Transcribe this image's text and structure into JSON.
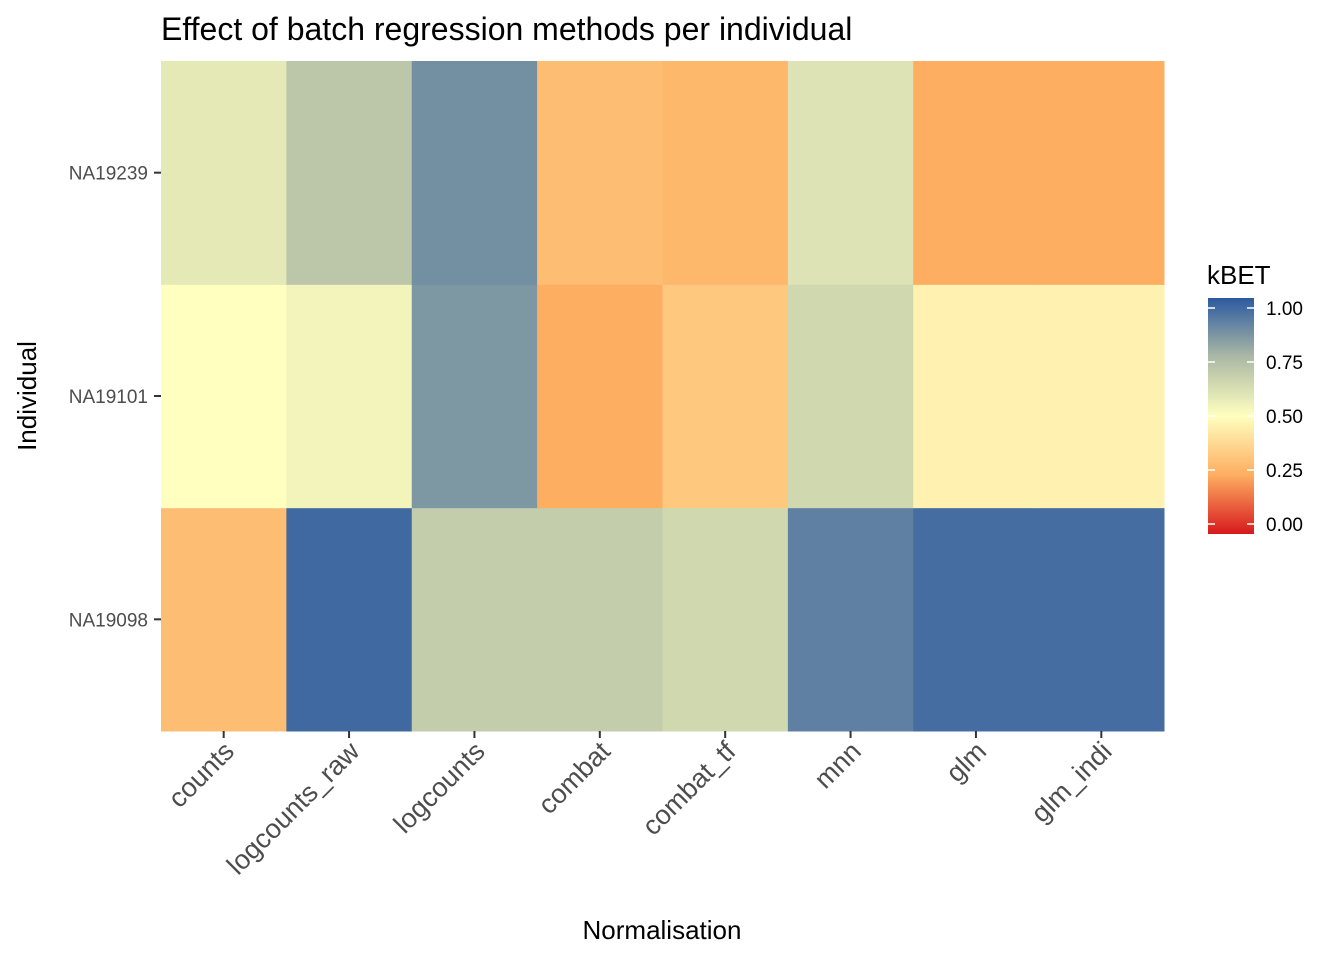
{
  "chart_data": {
    "type": "heatmap",
    "title": "Effect of batch regression methods per individual",
    "xlabel": "Normalisation",
    "ylabel": "Individual",
    "x_categories": [
      "counts",
      "logcounts_raw",
      "logcounts",
      "combat",
      "combat_tf",
      "mnn",
      "glm",
      "glm_indi"
    ],
    "y_categories": [
      "NA19098",
      "NA19101",
      "NA19239"
    ],
    "values": {
      "NA19239": [
        0.58,
        0.7,
        0.86,
        0.3,
        0.28,
        0.6,
        0.25,
        0.25
      ],
      "NA19101": [
        0.5,
        0.54,
        0.84,
        0.25,
        0.33,
        0.64,
        0.46,
        0.46
      ],
      "NA19098": [
        0.3,
        0.96,
        0.68,
        0.68,
        0.64,
        0.9,
        0.95,
        0.95
      ]
    },
    "legend": {
      "title": "kBET",
      "ticks": [
        "1.00",
        "0.75",
        "0.50",
        "0.25",
        "0.00"
      ],
      "range": [
        0,
        1
      ],
      "colors": [
        "#d7191c",
        "#fdae61",
        "#ffffbf",
        "#abb9a4",
        "#2c5aa0"
      ],
      "placement": "right"
    },
    "grid": false
  }
}
